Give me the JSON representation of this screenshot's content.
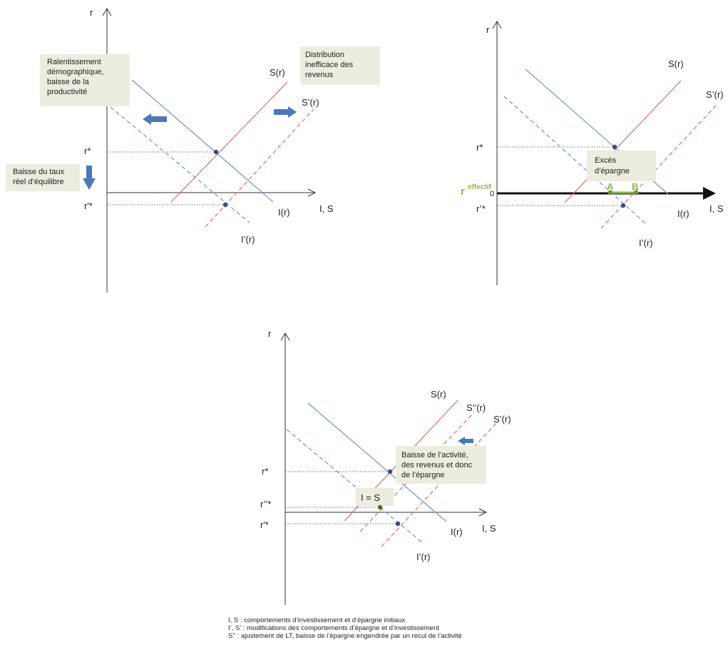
{
  "diagram1": {
    "axis_y": "r",
    "axis_x": "I, S",
    "r_star": "r*",
    "r_prime_star": "r'*",
    "S": "S(r)",
    "S_prime": "S’(r)",
    "I": "I(r)",
    "I_prime": "I’(r)",
    "box_left": [
      "Ralentissement",
      "démographique,",
      "baisse de la",
      "productivité"
    ],
    "box_right": [
      "Distribution",
      "inefficace des",
      "revenus"
    ],
    "box_down": [
      "Baisse du taux",
      "réel d’équilibre"
    ]
  },
  "diagram2": {
    "axis_y": "r",
    "axis_x": "I, S",
    "r_star": "r*",
    "r_prime_star": "r’*",
    "S": "S(r)",
    "S_prime": "S’(r)",
    "I": "I(r)",
    "I_prime": "I’(r)",
    "r_eff": "r",
    "r_eff_sup": "effectif",
    "zero": "0",
    "A": "A",
    "B": "B",
    "box": [
      "Excès",
      "d’épargne"
    ]
  },
  "diagram3": {
    "axis_y": "r",
    "axis_x": "I, S",
    "r_star": "r*",
    "r_dprime_star": "r’’*",
    "r_prime_star": "r'*",
    "S": "S(r)",
    "S_dprime": "S’’(r)",
    "S_prime": "S’(r)",
    "I": "I(r)",
    "I_prime": "I’(r)",
    "box_eq": "I = S",
    "box_right": [
      "Baisse de l’activité,",
      "des revenus  et donc",
      "de l’épargne"
    ]
  },
  "caption": [
    "I, S : comportements d’investissement  et d’épargne  initiaux",
    "I’, S’ : modifications des comportements d’épargne  et d’investissement",
    "S’’ : ajustement de LT, baisse de l’épargne engendrée  par un recul de l’activité"
  ],
  "colors": {
    "investment": "#6a96cc",
    "saving": "#e06060",
    "point": "#2f4f86",
    "box": "#ececdf",
    "arrow": "#4a78b8",
    "effective_rate": "#8bb84a"
  }
}
